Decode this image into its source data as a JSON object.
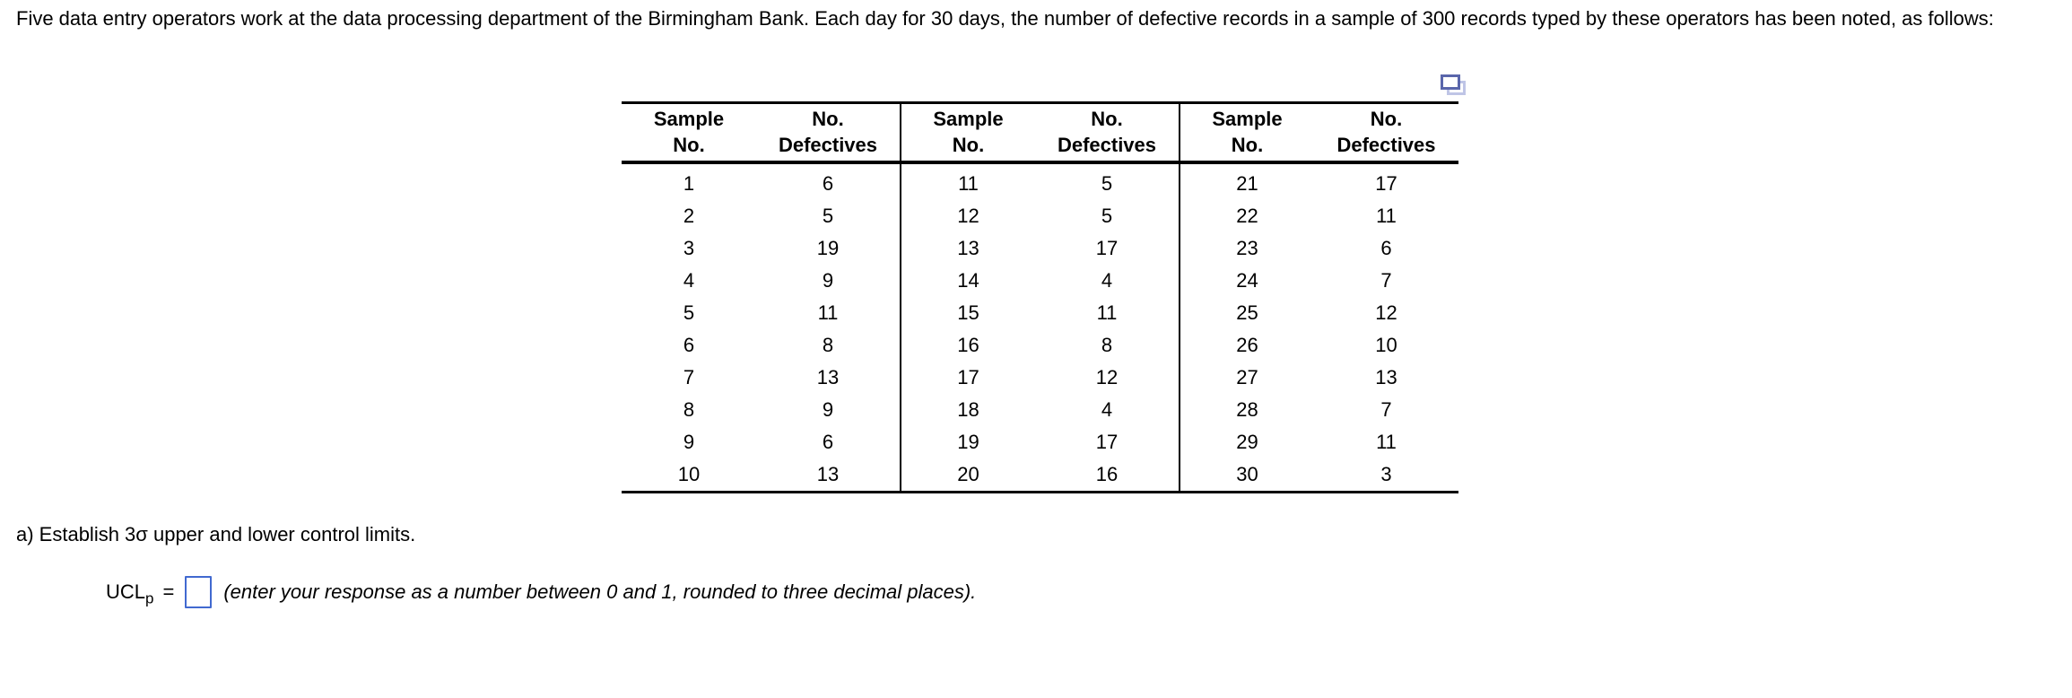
{
  "problem": {
    "statement": "Five data entry operators work at the data processing department of the Birmingham Bank. Each day for 30 days, the number of defective records in a sample of 300 records typed by these operators has been noted, as follows:",
    "part_a_prompt": "a) Establish 3σ upper and lower control limits."
  },
  "answer": {
    "label_base": "UCL",
    "label_subscript": "p",
    "equals_sign": "=",
    "input_value": "",
    "instruction": "(enter your response as a number between 0 and 1, rounded to three decimal places)."
  },
  "icons": {
    "copy_table_icon": "duplicate-window-icon"
  },
  "colors": {
    "answer_box_border": "#4169d0",
    "copy_icon_front": "#5a66ab",
    "copy_icon_back": "#bfc5e6",
    "table_rule": "#000000",
    "text": "#000000"
  },
  "table": {
    "headers": [
      {
        "line1": "Sample",
        "line2": "No."
      },
      {
        "line1": "No.",
        "line2": "Defectives"
      },
      {
        "line1": "Sample",
        "line2": "No."
      },
      {
        "line1": "No.",
        "line2": "Defectives"
      },
      {
        "line1": "Sample",
        "line2": "No."
      },
      {
        "line1": "No.",
        "line2": "Defectives"
      }
    ],
    "groups": [
      {
        "rows": [
          {
            "sample": "1",
            "defectives": "6"
          },
          {
            "sample": "2",
            "defectives": "5"
          },
          {
            "sample": "3",
            "defectives": "19"
          },
          {
            "sample": "4",
            "defectives": "9"
          },
          {
            "sample": "5",
            "defectives": "11"
          },
          {
            "sample": "6",
            "defectives": "8"
          },
          {
            "sample": "7",
            "defectives": "13"
          },
          {
            "sample": "8",
            "defectives": "9"
          },
          {
            "sample": "9",
            "defectives": "6"
          },
          {
            "sample": "10",
            "defectives": "13"
          }
        ]
      },
      {
        "rows": [
          {
            "sample": "11",
            "defectives": "5"
          },
          {
            "sample": "12",
            "defectives": "5"
          },
          {
            "sample": "13",
            "defectives": "17"
          },
          {
            "sample": "14",
            "defectives": "4"
          },
          {
            "sample": "15",
            "defectives": "11"
          },
          {
            "sample": "16",
            "defectives": "8"
          },
          {
            "sample": "17",
            "defectives": "12"
          },
          {
            "sample": "18",
            "defectives": "4"
          },
          {
            "sample": "19",
            "defectives": "17"
          },
          {
            "sample": "20",
            "defectives": "16"
          }
        ]
      },
      {
        "rows": [
          {
            "sample": "21",
            "defectives": "17"
          },
          {
            "sample": "22",
            "defectives": "11"
          },
          {
            "sample": "23",
            "defectives": "6"
          },
          {
            "sample": "24",
            "defectives": "7"
          },
          {
            "sample": "25",
            "defectives": "12"
          },
          {
            "sample": "26",
            "defectives": "10"
          },
          {
            "sample": "27",
            "defectives": "13"
          },
          {
            "sample": "28",
            "defectives": "7"
          },
          {
            "sample": "29",
            "defectives": "11"
          },
          {
            "sample": "30",
            "defectives": "3"
          }
        ]
      }
    ]
  }
}
